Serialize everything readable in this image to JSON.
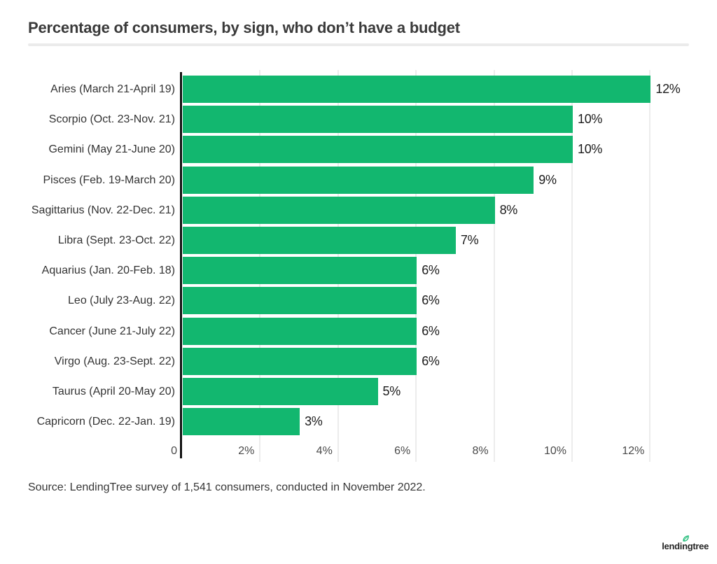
{
  "header": {
    "title": "Percentage of consumers, by sign, who don’t have a budget"
  },
  "chart_data": {
    "type": "bar",
    "orientation": "horizontal",
    "title": "Percentage of consumers, by sign, who don’t have a budget",
    "categories": [
      "Aries (March 21-April 19)",
      "Scorpio (Oct. 23-Nov. 21)",
      "Gemini (May 21-June 20)",
      "Pisces (Feb. 19-March 20)",
      "Sagittarius (Nov. 22-Dec. 21)",
      "Libra (Sept. 23-Oct. 22)",
      "Aquarius (Jan. 20-Feb. 18)",
      "Leo (July 23-Aug. 22)",
      "Cancer (June 21-July 22)",
      "Virgo (Aug. 23-Sept. 22)",
      "Taurus (April 20-May 20)",
      "Capricorn (Dec. 22-Jan. 19)"
    ],
    "values": [
      12,
      10,
      10,
      9,
      8,
      7,
      6,
      6,
      6,
      6,
      5,
      3
    ],
    "value_labels": [
      "12%",
      "10%",
      "10%",
      "9%",
      "8%",
      "7%",
      "6%",
      "6%",
      "6%",
      "6%",
      "5%",
      "3%"
    ],
    "xlabel": "",
    "ylabel": "",
    "xlim": [
      0,
      13
    ],
    "x_tick_values": [
      0,
      2,
      4,
      6,
      8,
      10,
      12
    ],
    "x_tick_labels": [
      "0",
      "2%",
      "4%",
      "6%",
      "8%",
      "10%",
      "12%"
    ],
    "grid": true,
    "legend": false,
    "bar_color": "#12b76f",
    "axis_color": "#121212",
    "gridline_color": "#ececec"
  },
  "footer": {
    "source": "Source: LendingTree survey of 1,541 consumers, conducted in November 2022.",
    "logo_text": "lendingtree"
  }
}
